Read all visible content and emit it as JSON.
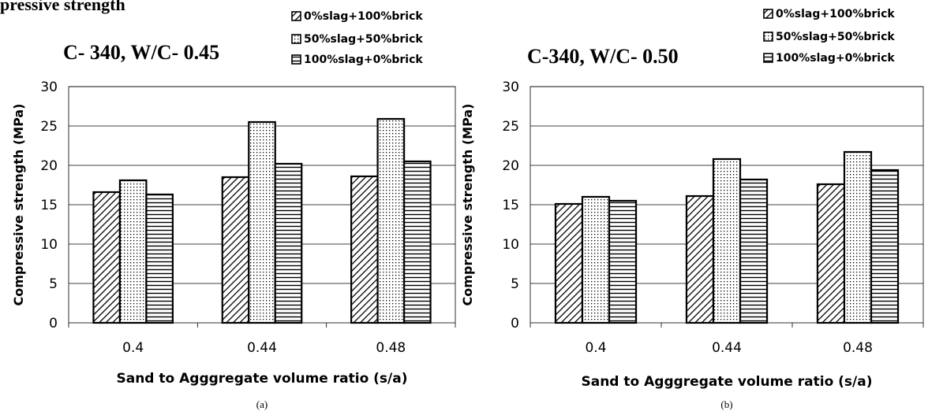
{
  "page": {
    "top_text": "pressive strength"
  },
  "legend_labels": [
    "0%slag+100%brick",
    "50%slag+50%brick",
    "100%slag+0%brick"
  ],
  "chart_data": [
    {
      "type": "bar",
      "title": "C- 340, W/C-  0.45",
      "caption": "(a)",
      "xlabel": "Sand to Agggregate volume ratio (s/a)",
      "ylabel": "Compressive strength (MPa)",
      "categories": [
        "0.4",
        "0.44",
        "0.48"
      ],
      "ylim": [
        0,
        30
      ],
      "yticks": [
        "0",
        "5",
        "10",
        "15",
        "20",
        "25",
        "30"
      ],
      "grid": true,
      "legend": "top-right",
      "series": [
        {
          "name": "0%slag+100%brick",
          "pattern": "diagonal-hatch",
          "values": [
            16.6,
            18.5,
            18.6
          ]
        },
        {
          "name": "50%slag+50%brick",
          "pattern": "dots",
          "values": [
            18.1,
            25.5,
            25.9
          ]
        },
        {
          "name": "100%slag+0%brick",
          "pattern": "horizontal-lines",
          "values": [
            16.3,
            20.2,
            20.5
          ]
        }
      ]
    },
    {
      "type": "bar",
      "title": "C-340, W/C-  0.50",
      "caption": "(b)",
      "xlabel": "Sand to Agggregate volume ratio (s/a)",
      "ylabel": "Compressive strength (MPa)",
      "categories": [
        "0.4",
        "0.44",
        "0.48"
      ],
      "ylim": [
        0,
        30
      ],
      "yticks": [
        "0",
        "5",
        "10",
        "15",
        "20",
        "25",
        "30"
      ],
      "grid": true,
      "legend": "top-right",
      "series": [
        {
          "name": "0%slag+100%brick",
          "pattern": "diagonal-hatch",
          "values": [
            15.1,
            16.1,
            17.6
          ]
        },
        {
          "name": "50%slag+50%brick",
          "pattern": "dots",
          "values": [
            16.0,
            20.8,
            21.7
          ]
        },
        {
          "name": "100%slag+0%brick",
          "pattern": "horizontal-lines",
          "values": [
            15.5,
            18.2,
            19.4
          ]
        }
      ]
    }
  ]
}
